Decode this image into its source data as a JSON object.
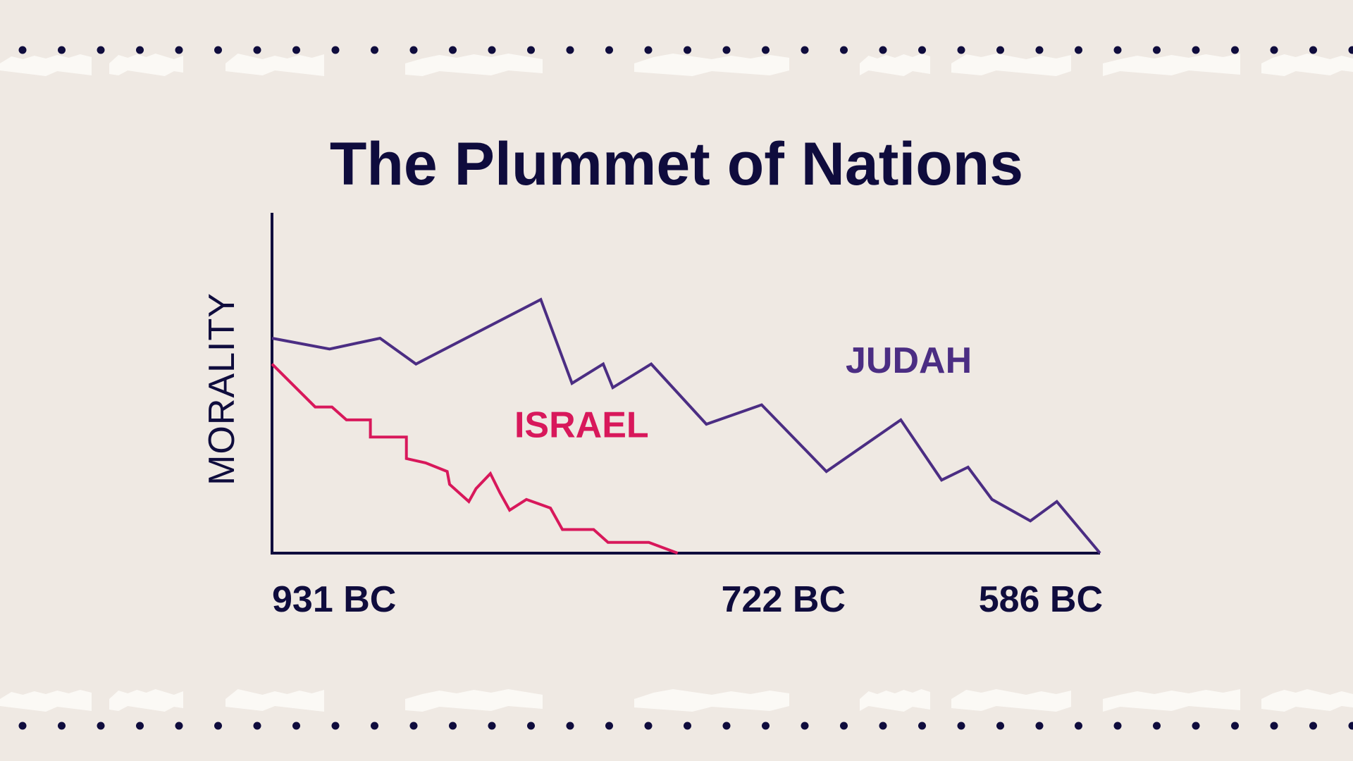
{
  "colors": {
    "background": "#efe9e3",
    "paper_tear": "#fbf9f5",
    "dots": "#0f0c3d",
    "axis": "#0f0c3d",
    "text": "#0f0c3d",
    "judah": "#4b2d83",
    "israel": "#d8185b"
  },
  "chart_data": {
    "type": "line",
    "title": "The Plummet of Nations",
    "xlabel": "",
    "ylabel": "MORALITY",
    "x_ticks": [
      {
        "value": -931,
        "label": "931 BC"
      },
      {
        "value": -722,
        "label": "722 BC"
      },
      {
        "value": -586,
        "label": "586 BC"
      }
    ],
    "xlim": [
      -931,
      -586
    ],
    "ylim": [
      0,
      100
    ],
    "grid": false,
    "legend": "inline labels",
    "series": [
      {
        "name": "JUDAH",
        "color": "#4b2d83",
        "label_near": {
          "x": -692,
          "y": 84
        },
        "points": [
          [
            -931,
            100
          ],
          [
            -907,
            95
          ],
          [
            -886,
            100
          ],
          [
            -871,
            88
          ],
          [
            -819,
            118
          ],
          [
            -806,
            79
          ],
          [
            -793,
            88
          ],
          [
            -789,
            77
          ],
          [
            -773,
            88
          ],
          [
            -750,
            60
          ],
          [
            -727,
            69
          ],
          [
            -700,
            38
          ],
          [
            -669,
            62
          ],
          [
            -652,
            34
          ],
          [
            -641,
            40
          ],
          [
            -631,
            25
          ],
          [
            -615,
            15
          ],
          [
            -604,
            24
          ],
          [
            -586,
            0
          ]
        ]
      },
      {
        "name": "ISRAEL",
        "color": "#d8185b",
        "label_near": {
          "x": -830,
          "y": 54
        },
        "points": [
          [
            -931,
            88
          ],
          [
            -913,
            68
          ],
          [
            -906,
            68
          ],
          [
            -900,
            62
          ],
          [
            -890,
            62
          ],
          [
            -890,
            54
          ],
          [
            -875,
            54
          ],
          [
            -875,
            44
          ],
          [
            -867,
            42
          ],
          [
            -858,
            38
          ],
          [
            -857,
            32
          ],
          [
            -849,
            24
          ],
          [
            -846,
            30
          ],
          [
            -840,
            37
          ],
          [
            -836,
            28
          ],
          [
            -832,
            20
          ],
          [
            -825,
            25
          ],
          [
            -815,
            21
          ],
          [
            -810,
            11
          ],
          [
            -797,
            11
          ],
          [
            -791,
            5
          ],
          [
            -774,
            5
          ],
          [
            -762,
            0
          ]
        ]
      }
    ]
  }
}
